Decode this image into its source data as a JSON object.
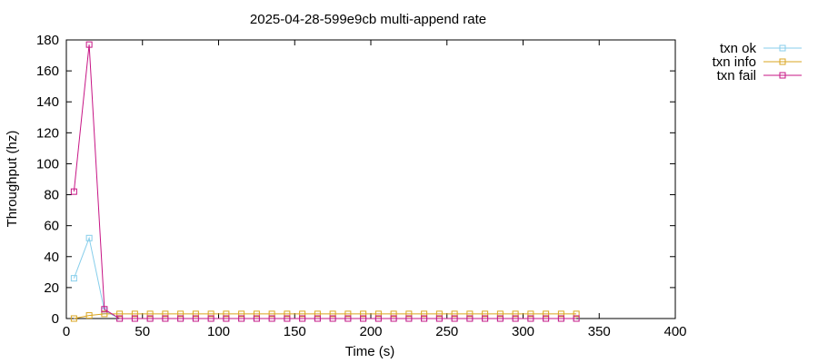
{
  "chart_data": {
    "type": "line",
    "title": "2025-04-28-599e9cb multi-append rate",
    "xlabel": "Time (s)",
    "ylabel": "Throughput (hz)",
    "xlim": [
      0,
      400
    ],
    "ylim": [
      0,
      180
    ],
    "xticks": [
      0,
      50,
      100,
      150,
      200,
      250,
      300,
      350,
      400
    ],
    "yticks": [
      0,
      20,
      40,
      60,
      80,
      100,
      120,
      140,
      160,
      180
    ],
    "grid": false,
    "legend_position": "outside-top-right",
    "series": [
      {
        "name": "txn ok",
        "color": "#87ceeb",
        "x": [
          5,
          15,
          25,
          35,
          45,
          55,
          65,
          75,
          85,
          95,
          105,
          115,
          125,
          135,
          145,
          155,
          165,
          175,
          185,
          195,
          205,
          215,
          225,
          235,
          245,
          255,
          265,
          275,
          285,
          295,
          305,
          315,
          325,
          335
        ],
        "y": [
          26,
          52,
          5,
          0,
          0,
          0,
          0,
          0,
          0,
          0,
          0,
          0,
          0,
          0,
          0,
          0,
          0,
          0,
          0,
          0,
          0,
          0,
          0,
          0,
          0,
          0,
          0,
          0,
          0,
          0,
          0,
          0,
          0,
          0
        ]
      },
      {
        "name": "txn info",
        "color": "#daa520",
        "x": [
          5,
          15,
          25,
          35,
          45,
          55,
          65,
          75,
          85,
          95,
          105,
          115,
          125,
          135,
          145,
          155,
          165,
          175,
          185,
          195,
          205,
          215,
          225,
          235,
          245,
          255,
          265,
          275,
          285,
          295,
          305,
          315,
          325,
          335
        ],
        "y": [
          0,
          2,
          3,
          3,
          3,
          3,
          3,
          3,
          3,
          3,
          3,
          3,
          3,
          3,
          3,
          3,
          3,
          3,
          3,
          3,
          3,
          3,
          3,
          3,
          3,
          3,
          3,
          3,
          3,
          3,
          3,
          3,
          3,
          3
        ]
      },
      {
        "name": "txn fail",
        "color": "#c71585",
        "x": [
          5,
          15,
          25,
          35,
          45,
          55,
          65,
          75,
          85,
          95,
          105,
          115,
          125,
          135,
          145,
          155,
          165,
          175,
          185,
          195,
          205,
          215,
          225,
          235,
          245,
          255,
          265,
          275,
          285,
          295,
          305,
          315,
          325,
          335
        ],
        "y": [
          82,
          177,
          6,
          0,
          0,
          0,
          0,
          0,
          0,
          0,
          0,
          0,
          0,
          0,
          0,
          0,
          0,
          0,
          0,
          0,
          0,
          0,
          0,
          0,
          0,
          0,
          0,
          0,
          0,
          0,
          0,
          0,
          0,
          0
        ]
      }
    ]
  }
}
